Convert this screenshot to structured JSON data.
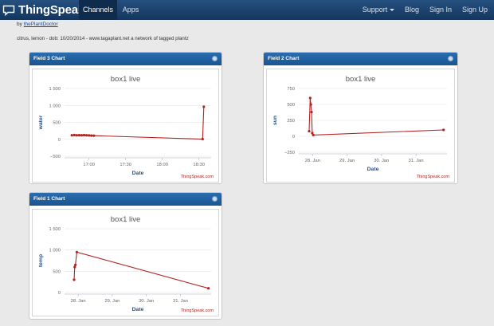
{
  "nav": {
    "brand": "ThingSpeak",
    "channels": "Channels",
    "apps": "Apps",
    "support": "Support",
    "blog": "Blog",
    "sign_in": "Sign In",
    "sign_up": "Sign Up"
  },
  "channel": {
    "by_prefix": "by",
    "author": "thePlantDoctor",
    "description": "citrus, lemon - dob: 10/20/2014 - www.tagaplant.net a network of tagged plantz"
  },
  "colors": {
    "navbar": "#1a3f6b",
    "panel_header": "#1f5d9c",
    "series": "#b22222",
    "axis_label": "#2c4f7a",
    "credit": "#b22222"
  },
  "chart_data": [
    {
      "panel_title": "Field 3 Chart",
      "type": "line",
      "title": "box1 live",
      "xlabel": "Date",
      "ylabel": "water",
      "credit": "ThingSpeak.com",
      "x_ticks": [
        "17:00",
        "17:30",
        "18:00",
        "18:30"
      ],
      "x_tick_minutes": [
        0,
        30,
        60,
        90
      ],
      "xlim": [
        -20,
        100
      ],
      "ylim": [
        -500,
        1500
      ],
      "y_ticks": [
        -500,
        0,
        500,
        1000,
        1500
      ],
      "y_tick_labels": [
        "−500",
        "0",
        "500",
        "1 000",
        "1 500"
      ],
      "points": [
        [
          -14,
          120
        ],
        [
          -12,
          125
        ],
        [
          -10,
          118
        ],
        [
          -8,
          122
        ],
        [
          -6,
          120
        ],
        [
          -4,
          124
        ],
        [
          -2,
          119
        ],
        [
          0,
          115
        ],
        [
          2,
          110
        ],
        [
          4,
          108
        ],
        [
          93,
          5
        ],
        [
          94,
          960
        ]
      ]
    },
    {
      "panel_title": "Field 2 Chart",
      "type": "line",
      "title": "box1 live",
      "xlabel": "Date",
      "ylabel": "sun",
      "credit": "ThingSpeak.com",
      "x_ticks": [
        "28. Jan",
        "29. Jan",
        "30. Jan",
        "31. Jan"
      ],
      "x_tick_days": [
        28,
        29,
        30,
        31
      ],
      "xlim": [
        27.6,
        31.9
      ],
      "ylim": [
        -250,
        750
      ],
      "y_ticks": [
        -250,
        0,
        250,
        500,
        750
      ],
      "y_tick_labels": [
        "−250",
        "0",
        "250",
        "500",
        "750"
      ],
      "points": [
        [
          27.9,
          80
        ],
        [
          27.93,
          600
        ],
        [
          27.95,
          500
        ],
        [
          27.97,
          380
        ],
        [
          27.99,
          50
        ],
        [
          28.02,
          20
        ],
        [
          31.8,
          100
        ]
      ]
    },
    {
      "panel_title": "Field 1 Chart",
      "type": "line",
      "title": "box1 live",
      "xlabel": "Date",
      "ylabel": "temp",
      "credit": "ThingSpeak.com",
      "x_ticks": [
        "28. Jan",
        "29. Jan",
        "30. Jan",
        "31. Jan"
      ],
      "x_tick_days": [
        28,
        29,
        30,
        31
      ],
      "xlim": [
        27.6,
        31.9
      ],
      "ylim": [
        0,
        1500
      ],
      "y_ticks": [
        0,
        500,
        1000,
        1500
      ],
      "y_tick_labels": [
        "0",
        "500",
        "1 000",
        "1 500"
      ],
      "points": [
        [
          27.88,
          300
        ],
        [
          27.9,
          600
        ],
        [
          27.92,
          650
        ],
        [
          27.96,
          950
        ],
        [
          31.82,
          100
        ]
      ]
    }
  ]
}
